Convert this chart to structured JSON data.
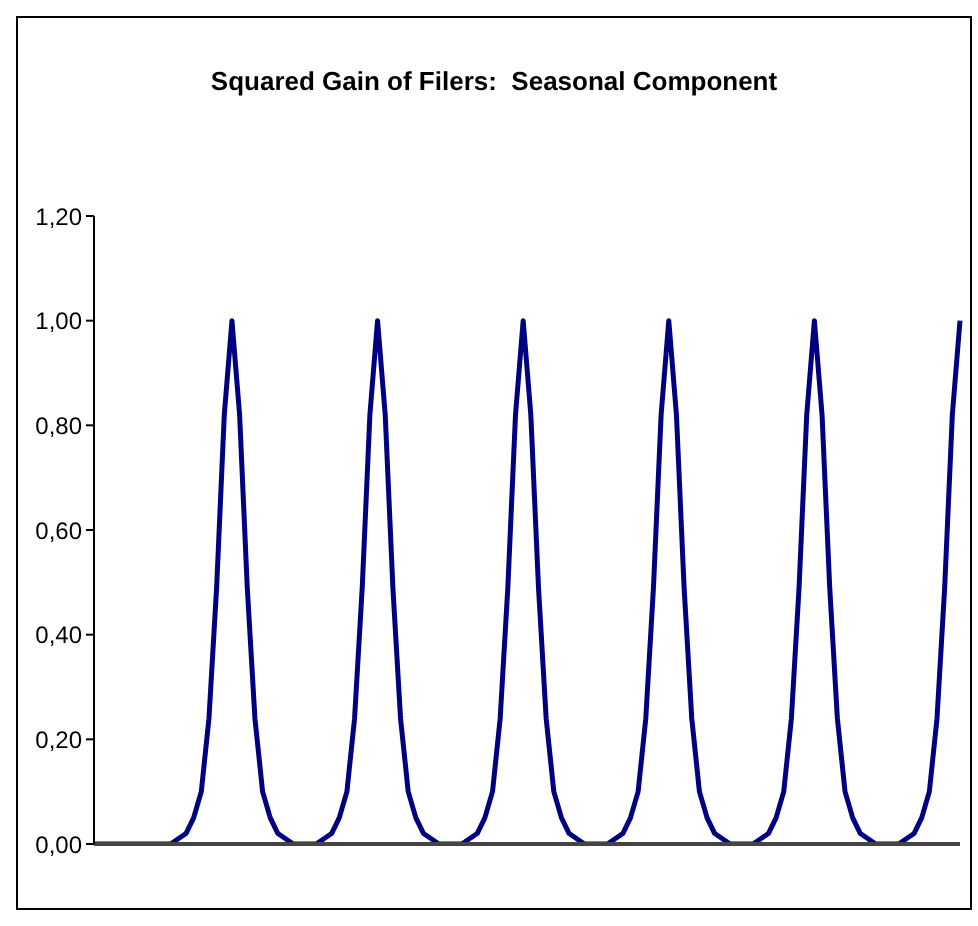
{
  "chart_data": {
    "type": "line",
    "title": "Squared Gain of Filers:  Seasonal Component",
    "categories": [
      null,
      null,
      null,
      null,
      null,
      null,
      null,
      null,
      null,
      null,
      null,
      null,
      null,
      null,
      null,
      null,
      null,
      null,
      null,
      null,
      null,
      null,
      null,
      null,
      null,
      null,
      null,
      null,
      null,
      null,
      null,
      null,
      null,
      null,
      null,
      null,
      null,
      null,
      null,
      null,
      null,
      null,
      null,
      null,
      null,
      null,
      null,
      null,
      null,
      null,
      null,
      null,
      null,
      null,
      null,
      null,
      null,
      null,
      null,
      null,
      null,
      null,
      null,
      null,
      null,
      null,
      null,
      null,
      null,
      null,
      null,
      null,
      null,
      null,
      null,
      null,
      null,
      null,
      null,
      null,
      null,
      null,
      null,
      null,
      null,
      null,
      null,
      null,
      null,
      null,
      null,
      null,
      null,
      null,
      null,
      null,
      null,
      null,
      null,
      null,
      null,
      null,
      null,
      null,
      null,
      null,
      null,
      null,
      null,
      null,
      null,
      null,
      null,
      null
    ],
    "series": [
      {
        "color": "#000080",
        "values": [
          0,
          0,
          0,
          0,
          0,
          0,
          0,
          0,
          0,
          0,
          0,
          0.01,
          0.02,
          0.05,
          0.1,
          0.24,
          0.49,
          0.82,
          1.0,
          0.82,
          0.49,
          0.24,
          0.1,
          0.05,
          0.02,
          0.01,
          0,
          0,
          0,
          0,
          0.01,
          0.02,
          0.05,
          0.1,
          0.24,
          0.49,
          0.82,
          1.0,
          0.82,
          0.49,
          0.24,
          0.1,
          0.05,
          0.02,
          0.01,
          0,
          0,
          0,
          0,
          0.01,
          0.02,
          0.05,
          0.1,
          0.24,
          0.49,
          0.82,
          1.0,
          0.82,
          0.49,
          0.24,
          0.1,
          0.05,
          0.02,
          0.01,
          0,
          0,
          0,
          0,
          0.01,
          0.02,
          0.05,
          0.1,
          0.24,
          0.49,
          0.82,
          1.0,
          0.82,
          0.49,
          0.24,
          0.1,
          0.05,
          0.02,
          0.01,
          0,
          0,
          0,
          0,
          0.01,
          0.02,
          0.05,
          0.1,
          0.24,
          0.49,
          0.82,
          1.0,
          0.82,
          0.49,
          0.24,
          0.1,
          0.05,
          0.02,
          0.01,
          0,
          0,
          0,
          0,
          0.01,
          0.02,
          0.05,
          0.1,
          0.24,
          0.49,
          0.82,
          1.0
        ]
      }
    ],
    "ylim": [
      0,
      1.2
    ],
    "yticks": [
      {
        "value": 0,
        "label": "0,00"
      },
      {
        "value": 0.2,
        "label": "0,20"
      },
      {
        "value": 0.4,
        "label": "0,40"
      },
      {
        "value": 0.6,
        "label": "0,60"
      },
      {
        "value": 0.8,
        "label": "0,80"
      },
      {
        "value": 1.0,
        "label": "1,00"
      },
      {
        "value": 1.2,
        "label": "1,20"
      }
    ],
    "grid": false,
    "legend": false,
    "marker": "none",
    "line_style": "solid"
  }
}
